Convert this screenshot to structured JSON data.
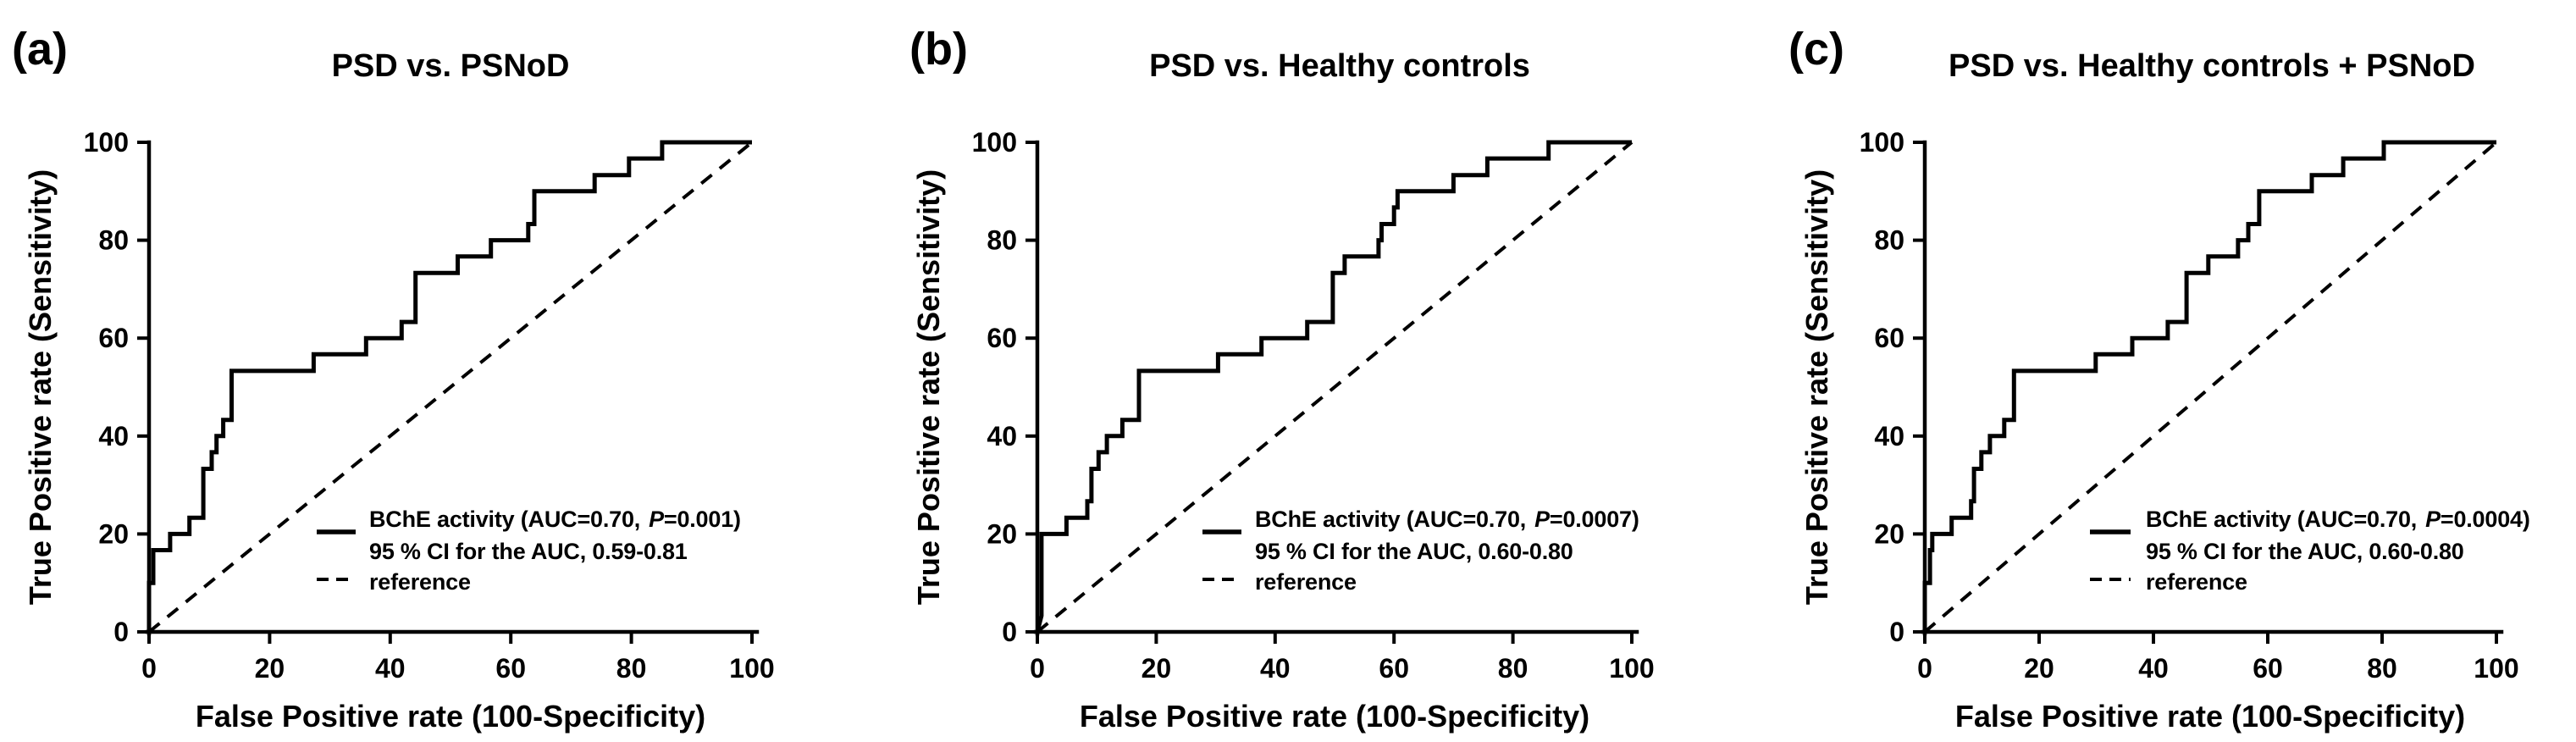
{
  "figure": {
    "background_color": "#ffffff",
    "line_color": "#000000",
    "description_note": "Three ROC curve panels comparing BChE activity as a classifier"
  },
  "axes": {
    "x_label": "False Positive rate (100-Specificity)",
    "y_label": "True Positive rate (Sensitivity)",
    "x_ticks": [
      0,
      20,
      40,
      60,
      80,
      100
    ],
    "y_ticks": [
      0,
      20,
      40,
      60,
      80,
      100
    ]
  },
  "panels": [
    {
      "label": "(a)",
      "title": "PSD vs. PSNoD",
      "legend": {
        "line1_pre": "BChE activity (AUC=0.70,",
        "p": "P",
        "line1_post": "=0.001)",
        "line2": "95 % CI for the AUC, 0.59-0.81",
        "line3": "reference"
      }
    },
    {
      "label": "(b)",
      "title": "PSD vs. Healthy controls",
      "legend": {
        "line1_pre": "BChE activity (AUC=0.70,",
        "p": "P",
        "line1_post": "=0.0007)",
        "line2": "95 % CI for the AUC, 0.60-0.80",
        "line3": "reference"
      }
    },
    {
      "label": "(c)",
      "title": "PSD vs. Healthy controls + PSNoD",
      "legend": {
        "line1_pre": "BChE activity (AUC=0.70,",
        "p": "P",
        "line1_post": "=0.0004)",
        "line2": "95 % CI for the AUC, 0.60-0.80",
        "line3": "reference"
      }
    }
  ],
  "chart_data": [
    {
      "type": "line",
      "panel": "a",
      "title": "PSD vs. PSNoD",
      "xlabel": "False Positive rate (100-Specificity)",
      "ylabel": "True Positive rate (Sensitivity)",
      "xlim": [
        0,
        100
      ],
      "ylim": [
        0,
        100
      ],
      "x_ticks": [
        0,
        20,
        40,
        60,
        80,
        100
      ],
      "y_ticks": [
        0,
        20,
        40,
        60,
        80,
        100
      ],
      "auc": 0.7,
      "p_value": "0.001",
      "ci_95": "0.59-0.81",
      "grid": false,
      "legend_position": "lower-right-inside",
      "series": [
        {
          "name": "BChE activity (AUC=0.70, P=0.001); 95 % CI for the AUC, 0.59-0.81",
          "style": "solid-step",
          "points": [
            [
              0,
              0
            ],
            [
              0,
              10
            ],
            [
              0.7,
              10
            ],
            [
              0.7,
              16.7
            ],
            [
              3.5,
              16.7
            ],
            [
              3.5,
              20
            ],
            [
              6.7,
              20
            ],
            [
              6.7,
              23.3
            ],
            [
              9,
              23.3
            ],
            [
              9,
              33.3
            ],
            [
              10.4,
              33.3
            ],
            [
              10.4,
              36.7
            ],
            [
              11.2,
              36.7
            ],
            [
              11.2,
              40
            ],
            [
              12.3,
              40
            ],
            [
              12.3,
              43.3
            ],
            [
              13.7,
              43.3
            ],
            [
              13.7,
              53.3
            ],
            [
              27.3,
              53.3
            ],
            [
              27.3,
              56.7
            ],
            [
              36,
              56.7
            ],
            [
              36,
              60
            ],
            [
              41.9,
              60
            ],
            [
              41.9,
              63.3
            ],
            [
              44.2,
              63.3
            ],
            [
              44.2,
              73.3
            ],
            [
              51.2,
              73.3
            ],
            [
              51.2,
              76.7
            ],
            [
              56.7,
              76.7
            ],
            [
              56.7,
              80
            ],
            [
              62.9,
              80
            ],
            [
              62.9,
              83.3
            ],
            [
              63.9,
              83.3
            ],
            [
              63.9,
              90
            ],
            [
              73.9,
              90
            ],
            [
              73.9,
              93.3
            ],
            [
              79.6,
              93.3
            ],
            [
              79.6,
              96.7
            ],
            [
              85.1,
              96.7
            ],
            [
              85.1,
              100
            ],
            [
              100,
              100
            ]
          ]
        },
        {
          "name": "reference",
          "style": "dashed",
          "points": [
            [
              0,
              0
            ],
            [
              100,
              100
            ]
          ]
        }
      ]
    },
    {
      "type": "line",
      "panel": "b",
      "title": "PSD vs. Healthy controls",
      "xlabel": "False Positive rate (100-Specificity)",
      "ylabel": "True Positive rate (Sensitivity)",
      "xlim": [
        0,
        100
      ],
      "ylim": [
        0,
        100
      ],
      "x_ticks": [
        0,
        20,
        40,
        60,
        80,
        100
      ],
      "y_ticks": [
        0,
        20,
        40,
        60,
        80,
        100
      ],
      "auc": 0.7,
      "p_value": "0.0007",
      "ci_95": "0.60-0.80",
      "grid": false,
      "legend_position": "lower-right-inside",
      "series": [
        {
          "name": "BChE activity (AUC=0.70, P=0.0007); 95 % CI for the AUC, 0.60-0.80",
          "style": "solid-step",
          "points": [
            [
              0,
              0
            ],
            [
              0.7,
              3.3
            ],
            [
              0.7,
              20
            ],
            [
              4.9,
              20
            ],
            [
              4.9,
              23.3
            ],
            [
              8.4,
              23.3
            ],
            [
              8.4,
              26.7
            ],
            [
              9.1,
              26.7
            ],
            [
              9.1,
              33.3
            ],
            [
              10.3,
              33.3
            ],
            [
              10.3,
              36.7
            ],
            [
              11.7,
              36.7
            ],
            [
              11.7,
              40
            ],
            [
              14.3,
              40
            ],
            [
              14.3,
              43.3
            ],
            [
              17.1,
              43.3
            ],
            [
              17.1,
              53.3
            ],
            [
              30.4,
              53.3
            ],
            [
              30.4,
              56.7
            ],
            [
              37.7,
              56.7
            ],
            [
              37.7,
              60
            ],
            [
              45.4,
              60
            ],
            [
              45.4,
              63.3
            ],
            [
              49.7,
              63.3
            ],
            [
              49.7,
              73.3
            ],
            [
              51.7,
              73.3
            ],
            [
              51.7,
              76.7
            ],
            [
              57.4,
              76.7
            ],
            [
              57.4,
              80
            ],
            [
              57.9,
              80
            ],
            [
              57.9,
              83.3
            ],
            [
              60,
              83.3
            ],
            [
              60,
              86.7
            ],
            [
              60.6,
              86.7
            ],
            [
              60.6,
              90
            ],
            [
              70,
              90
            ],
            [
              70,
              93.3
            ],
            [
              75.7,
              93.3
            ],
            [
              75.7,
              96.7
            ],
            [
              86,
              96.7
            ],
            [
              86,
              100
            ],
            [
              100,
              100
            ]
          ]
        },
        {
          "name": "reference",
          "style": "dashed",
          "points": [
            [
              0,
              0
            ],
            [
              100,
              100
            ]
          ]
        }
      ]
    },
    {
      "type": "line",
      "panel": "c",
      "title": "PSD vs. Healthy controls + PSNoD",
      "xlabel": "False Positive rate (100-Specificity)",
      "ylabel": "True Positive rate (Sensitivity)",
      "xlim": [
        0,
        100
      ],
      "ylim": [
        0,
        100
      ],
      "x_ticks": [
        0,
        20,
        40,
        60,
        80,
        100
      ],
      "y_ticks": [
        0,
        20,
        40,
        60,
        80,
        100
      ],
      "auc": 0.7,
      "p_value": "0.0004",
      "ci_95": "0.60-0.80",
      "grid": false,
      "legend_position": "lower-right-inside",
      "series": [
        {
          "name": "BChE activity (AUC=0.70, P=0.0004); 95 % CI for the AUC, 0.60-0.80",
          "style": "solid-step",
          "points": [
            [
              0,
              0
            ],
            [
              0,
              10
            ],
            [
              0.9,
              10
            ],
            [
              0.9,
              16.7
            ],
            [
              1.3,
              16.7
            ],
            [
              1.3,
              20
            ],
            [
              4.7,
              20
            ],
            [
              4.7,
              23.3
            ],
            [
              8.1,
              23.3
            ],
            [
              8.1,
              26.7
            ],
            [
              8.6,
              26.7
            ],
            [
              8.6,
              33.3
            ],
            [
              9.9,
              33.3
            ],
            [
              9.9,
              36.7
            ],
            [
              11.4,
              36.7
            ],
            [
              11.4,
              40
            ],
            [
              13.9,
              40
            ],
            [
              13.9,
              43.3
            ],
            [
              15.6,
              43.3
            ],
            [
              15.6,
              53.3
            ],
            [
              29.9,
              53.3
            ],
            [
              29.9,
              56.7
            ],
            [
              36.3,
              56.7
            ],
            [
              36.3,
              60
            ],
            [
              42.5,
              60
            ],
            [
              42.5,
              63.3
            ],
            [
              45.8,
              63.3
            ],
            [
              45.8,
              73.3
            ],
            [
              49.6,
              73.3
            ],
            [
              49.6,
              76.7
            ],
            [
              54.8,
              76.7
            ],
            [
              54.8,
              80
            ],
            [
              56.6,
              80
            ],
            [
              56.6,
              83.3
            ],
            [
              58.5,
              83.3
            ],
            [
              58.5,
              90
            ],
            [
              67.7,
              90
            ],
            [
              67.7,
              93.3
            ],
            [
              73.2,
              93.3
            ],
            [
              73.2,
              96.7
            ],
            [
              80.3,
              96.7
            ],
            [
              80.3,
              100
            ],
            [
              100,
              100
            ]
          ]
        },
        {
          "name": "reference",
          "style": "dashed",
          "points": [
            [
              0,
              0
            ],
            [
              100,
              100
            ]
          ]
        }
      ]
    }
  ]
}
